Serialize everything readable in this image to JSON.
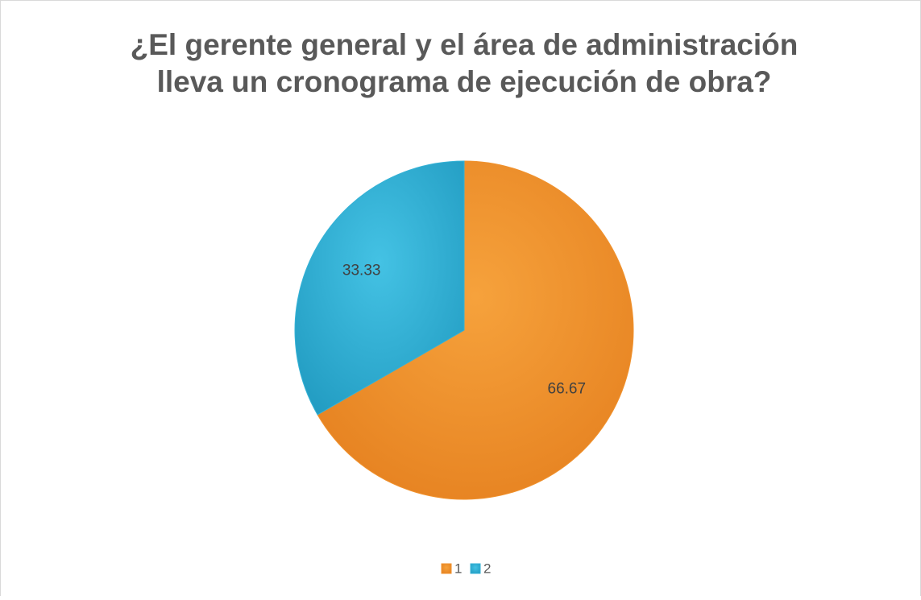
{
  "chart_data": {
    "type": "pie",
    "title": [
      "¿El gerente general y el área de administración",
      "lleva un cronograma de ejecución de obra?"
    ],
    "categories": [
      "1",
      "2"
    ],
    "values": [
      66.67,
      33.33
    ],
    "colors": [
      "#f0922e",
      "#35b2d6"
    ],
    "legend": "bottom"
  }
}
